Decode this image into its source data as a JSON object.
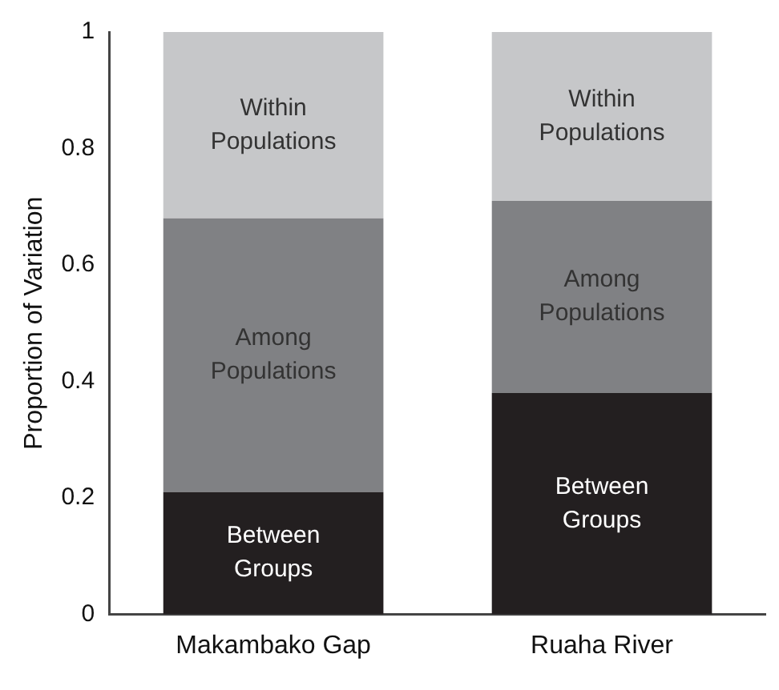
{
  "chart_data": {
    "type": "bar",
    "stacked": true,
    "ylabel": "Proportion of Variation",
    "categories": [
      "Makambako Gap",
      "Ruaha River"
    ],
    "series": [
      {
        "name": "Between Groups",
        "color": "#231f20",
        "values": [
          0.21,
          0.38
        ]
      },
      {
        "name": "Among Populations",
        "color": "#808184",
        "values": [
          0.47,
          0.33
        ]
      },
      {
        "name": "Within Populations",
        "color": "#c6c7c9",
        "values": [
          0.32,
          0.29
        ]
      }
    ],
    "ylim": [
      0,
      1
    ],
    "yticks": [
      0,
      0.2,
      0.4,
      0.6,
      0.8,
      1
    ],
    "grid": false,
    "legend": false
  }
}
